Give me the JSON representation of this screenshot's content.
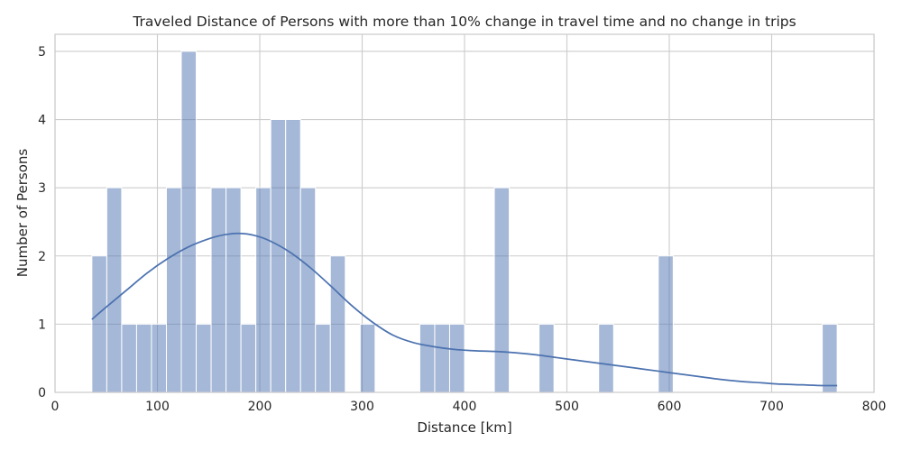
{
  "chart_data": {
    "type": "bar",
    "title": "Traveled Distance of Persons with more than 10% change in travel time and no change in trips",
    "xlabel": "Distance [km]",
    "ylabel": "Number of Persons",
    "xlim": [
      0,
      800
    ],
    "ylim": [
      0,
      5.25
    ],
    "xticks": [
      0,
      100,
      200,
      300,
      400,
      500,
      600,
      700,
      800
    ],
    "yticks": [
      0,
      1,
      2,
      3,
      4,
      5
    ],
    "xtick_labels": [
      "0",
      "100",
      "200",
      "300",
      "400",
      "500",
      "600",
      "700",
      "800"
    ],
    "ytick_labels": [
      "0",
      "1",
      "2",
      "3",
      "4",
      "5"
    ],
    "grid": true,
    "bar_color": "#4c72b0",
    "bar_opacity": 0.5,
    "kde_color": "#4c72b0",
    "bins": {
      "start": 36.0,
      "width": 14.56,
      "counts": [
        2,
        3,
        1,
        1,
        1,
        3,
        5,
        1,
        3,
        3,
        1,
        3,
        4,
        4,
        3,
        1,
        2,
        0,
        1,
        0,
        0,
        0,
        1,
        1,
        1,
        0,
        0,
        3,
        0,
        0,
        1,
        0,
        0,
        0,
        1,
        0,
        0,
        0,
        2,
        0,
        0,
        0,
        0,
        0,
        0,
        0,
        0,
        0,
        0,
        1
      ]
    },
    "kde": {
      "x": [
        36,
        50,
        70,
        90,
        110,
        130,
        150,
        165,
        180,
        195,
        210,
        230,
        250,
        270,
        290,
        310,
        330,
        350,
        370,
        390,
        410,
        430,
        450,
        470,
        490,
        510,
        530,
        550,
        570,
        590,
        610,
        630,
        650,
        670,
        690,
        710,
        730,
        750,
        764
      ],
      "y": [
        1.07,
        1.25,
        1.5,
        1.75,
        1.96,
        2.13,
        2.25,
        2.31,
        2.33,
        2.3,
        2.22,
        2.05,
        1.82,
        1.55,
        1.27,
        1.03,
        0.84,
        0.73,
        0.67,
        0.63,
        0.61,
        0.6,
        0.58,
        0.55,
        0.51,
        0.47,
        0.43,
        0.39,
        0.35,
        0.31,
        0.27,
        0.23,
        0.19,
        0.16,
        0.14,
        0.12,
        0.11,
        0.1,
        0.1
      ]
    }
  }
}
